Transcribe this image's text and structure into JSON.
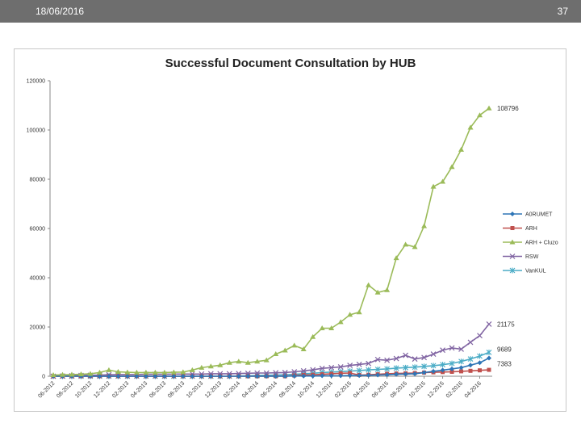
{
  "header": {
    "date": "18/06/2016",
    "page": "37"
  },
  "chart_data": {
    "type": "line",
    "title": "Successful Document Consultation by HUB",
    "xlabel": "",
    "ylabel": "",
    "ylim": [
      0,
      120000
    ],
    "yticks": [
      "0",
      "20000",
      "40000",
      "60000",
      "80000",
      "100000",
      "120000"
    ],
    "ytick_values": [
      0,
      20000,
      40000,
      60000,
      80000,
      100000,
      120000
    ],
    "x_tick_labels": [
      "06-2012",
      "08-2012",
      "10-2012",
      "12-2012",
      "02-2013",
      "04-2013",
      "06-2013",
      "08-2013",
      "10-2013",
      "12-2013",
      "02-2014",
      "04-2014",
      "06-2014",
      "08-2014",
      "10-2014",
      "12-2014",
      "02-2015",
      "04-2015",
      "06-2015",
      "08-2015",
      "10-2015",
      "12-2015",
      "02-2016",
      "04-2016"
    ],
    "n_points": 48,
    "legend_position": "right",
    "series": [
      {
        "name": "A0RUMET",
        "color": "#2e75b6",
        "marker": "diamond",
        "values": [
          0,
          0,
          0,
          0,
          0,
          0,
          0,
          0,
          0,
          0,
          0,
          0,
          0,
          0,
          0,
          0,
          0,
          0,
          0,
          0,
          0,
          0,
          0,
          0,
          0,
          0,
          100,
          100,
          100,
          200,
          200,
          200,
          300,
          300,
          400,
          500,
          600,
          800,
          900,
          1000,
          1500,
          2000,
          2500,
          3000,
          3500,
          4500,
          5500,
          7383
        ],
        "end_label": "7383"
      },
      {
        "name": "ARH",
        "color": "#c0504d",
        "marker": "square",
        "values": [
          0,
          0,
          0,
          0,
          0,
          0,
          0,
          0,
          0,
          0,
          0,
          0,
          0,
          0,
          0,
          0,
          0,
          0,
          0,
          0,
          0,
          0,
          0,
          0,
          0,
          0,
          300,
          500,
          600,
          800,
          1000,
          1200,
          1300,
          500,
          600,
          800,
          1000,
          1100,
          1200,
          1300,
          1500,
          1600,
          1700,
          1800,
          2000,
          2200,
          2400,
          2600
        ],
        "end_label": ""
      },
      {
        "name": "ARH + Cluzo",
        "color": "#9bbb59",
        "marker": "triangle",
        "values": [
          500,
          600,
          700,
          800,
          1000,
          1500,
          2500,
          1800,
          1600,
          1500,
          1500,
          1500,
          1500,
          1600,
          1700,
          2500,
          3500,
          4000,
          4500,
          5500,
          6000,
          5500,
          6000,
          6500,
          9000,
          10500,
          12500,
          11000,
          16000,
          19500,
          19500,
          22000,
          25000,
          26000,
          37000,
          34000,
          35000,
          48000,
          53500,
          52500,
          61000,
          77000,
          79000,
          85000,
          92000,
          101000,
          106000,
          108796
        ],
        "end_label": "108796"
      },
      {
        "name": "RSW",
        "color": "#8064a2",
        "marker": "x",
        "values": [
          0,
          100,
          200,
          300,
          400,
          500,
          600,
          700,
          700,
          700,
          800,
          800,
          800,
          900,
          900,
          900,
          900,
          1000,
          1000,
          1000,
          1100,
          1200,
          1300,
          1300,
          1400,
          1500,
          1800,
          2200,
          2600,
          3200,
          3500,
          3800,
          4400,
          4800,
          5200,
          6800,
          6500,
          7200,
          8500,
          7000,
          7600,
          9000,
          10600,
          11500,
          11000,
          13800,
          16500,
          21175
        ],
        "end_label": "21175"
      },
      {
        "name": "VanKUL",
        "color": "#4bacc6",
        "marker": "star",
        "values": [
          0,
          0,
          0,
          0,
          0,
          0,
          0,
          0,
          0,
          0,
          0,
          0,
          0,
          0,
          0,
          0,
          0,
          0,
          0,
          0,
          100,
          200,
          300,
          400,
          500,
          600,
          800,
          1000,
          1200,
          1500,
          1700,
          1900,
          2100,
          2300,
          2600,
          2800,
          3000,
          3300,
          3500,
          3700,
          4000,
          4300,
          4700,
          5200,
          6000,
          7000,
          8200,
          9689
        ],
        "end_label": "9689"
      }
    ]
  }
}
